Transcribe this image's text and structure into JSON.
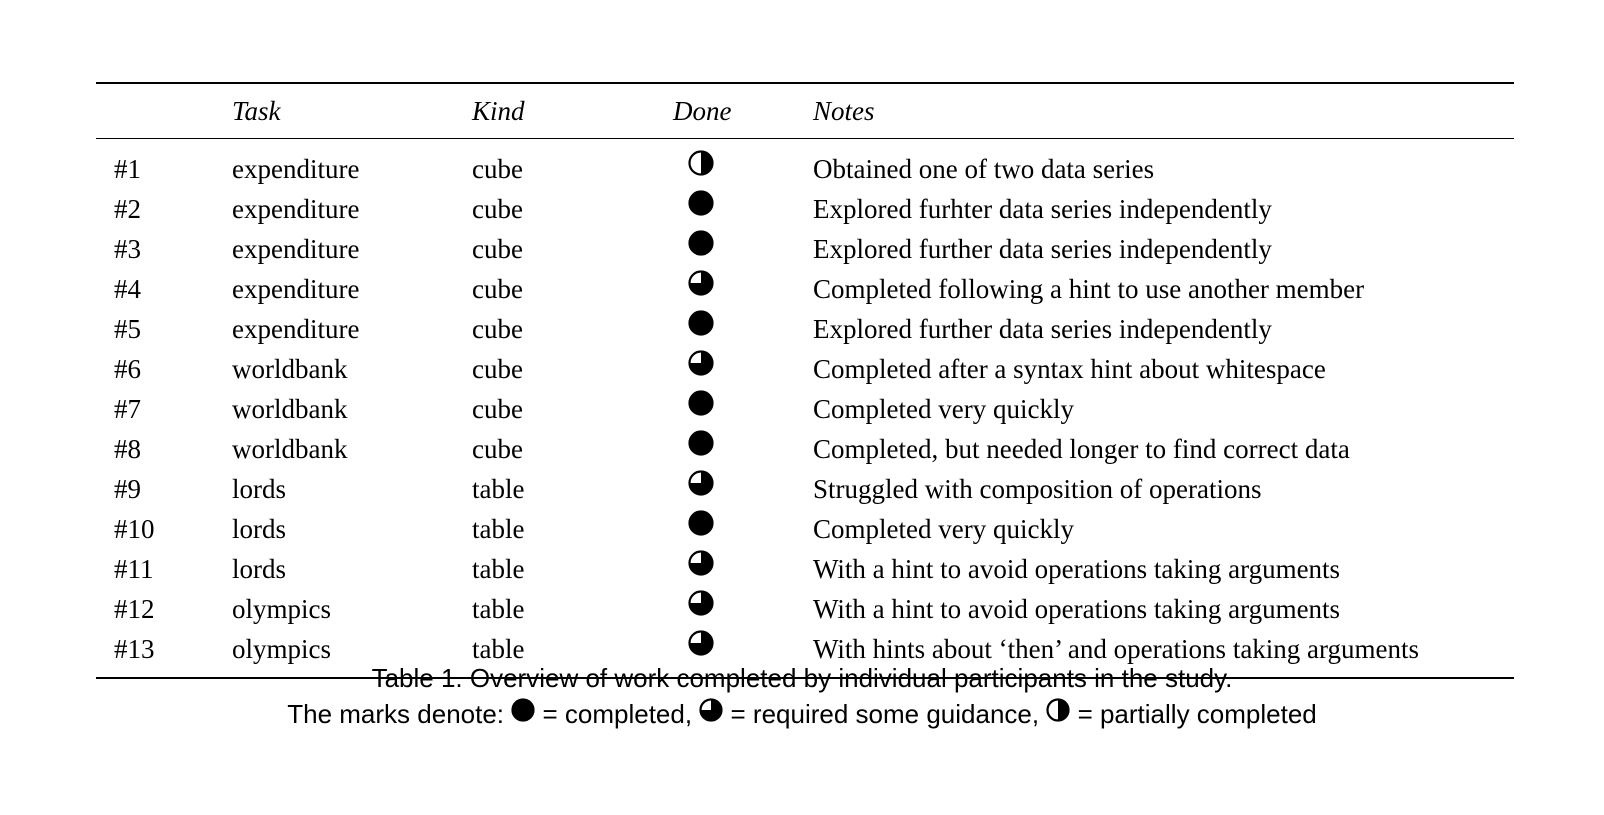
{
  "table": {
    "headers": {
      "id": "",
      "task": "Task",
      "kind": "Kind",
      "done": "Done",
      "notes": "Notes"
    },
    "rows": [
      {
        "id": "#1",
        "task": "expenditure",
        "kind": "cube",
        "done": "half",
        "notes": "Obtained one of two data series"
      },
      {
        "id": "#2",
        "task": "expenditure",
        "kind": "cube",
        "done": "full",
        "notes": "Explored furhter data series independently"
      },
      {
        "id": "#3",
        "task": "expenditure",
        "kind": "cube",
        "done": "full",
        "notes": "Explored further data series independently"
      },
      {
        "id": "#4",
        "task": "expenditure",
        "kind": "cube",
        "done": "three-quarter",
        "notes": "Completed following a hint to use another member"
      },
      {
        "id": "#5",
        "task": "expenditure",
        "kind": "cube",
        "done": "full",
        "notes": "Explored further data series independently"
      },
      {
        "id": "#6",
        "task": "worldbank",
        "kind": "cube",
        "done": "three-quarter",
        "notes": "Completed after a syntax hint about whitespace"
      },
      {
        "id": "#7",
        "task": "worldbank",
        "kind": "cube",
        "done": "full",
        "notes": "Completed very quickly"
      },
      {
        "id": "#8",
        "task": "worldbank",
        "kind": "cube",
        "done": "full",
        "notes": "Completed, but needed longer to find correct data"
      },
      {
        "id": "#9",
        "task": "lords",
        "kind": "table",
        "done": "three-quarter",
        "notes": "Struggled with composition of operations"
      },
      {
        "id": "#10",
        "task": "lords",
        "kind": "table",
        "done": "full",
        "notes": "Completed very quickly"
      },
      {
        "id": "#11",
        "task": "lords",
        "kind": "table",
        "done": "three-quarter",
        "notes": "With a hint to avoid operations taking arguments"
      },
      {
        "id": "#12",
        "task": "olympics",
        "kind": "table",
        "done": "three-quarter",
        "notes": "With a hint to avoid operations taking arguments"
      },
      {
        "id": "#13",
        "task": "olympics",
        "kind": "table",
        "done": "three-quarter",
        "notes": "With hints about ‘then’ and operations taking arguments"
      }
    ]
  },
  "caption": {
    "line1": "Table 1.  Overview of work completed by individual participants in the study.",
    "line2_prefix": "The marks denote: ",
    "completed": " = completed,  ",
    "guidance": " = required some guidance,  ",
    "partial": " = partially completed"
  }
}
